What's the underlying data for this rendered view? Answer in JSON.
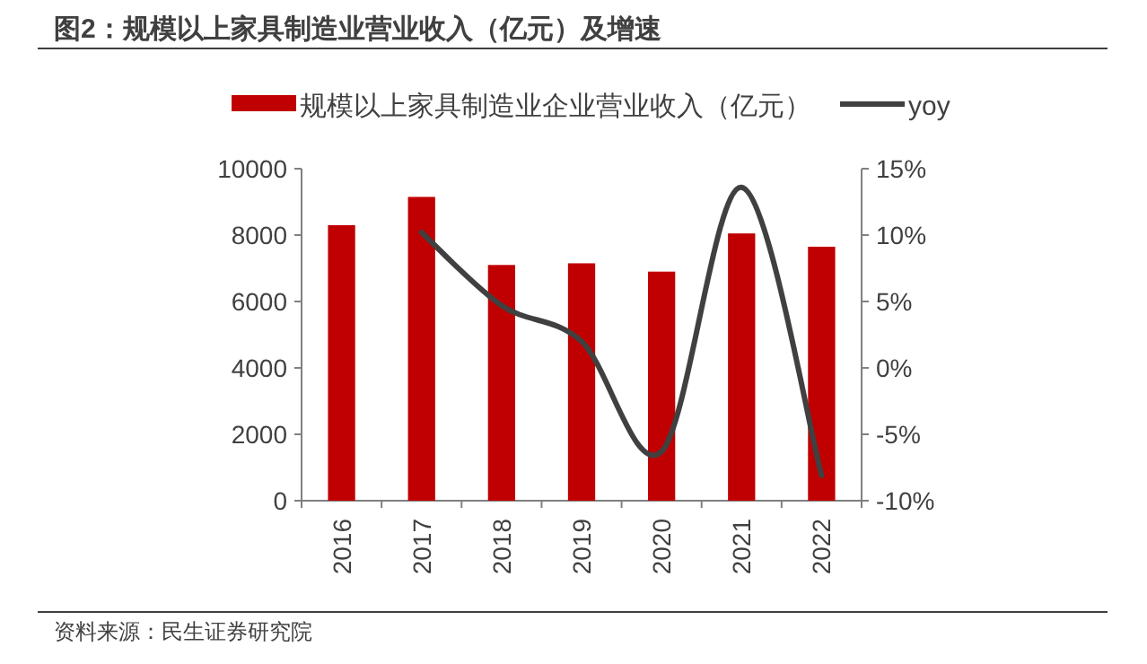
{
  "chart_data": {
    "type": "bar",
    "title": "图2：规模以上家具制造业营业收入（亿元）及增速",
    "categories": [
      "2016",
      "2017",
      "2018",
      "2019",
      "2020",
      "2021",
      "2022"
    ],
    "series": [
      {
        "name": "规模以上家具制造业企业营业收入（亿元）",
        "color": "#c00000",
        "values": [
          8300,
          9150,
          7100,
          7150,
          6900,
          8050,
          7650
        ]
      },
      {
        "name": "yoy",
        "type": "line",
        "axis": "y2",
        "color": "#404040",
        "values": [
          null,
          10.2,
          4.7,
          2.0,
          -6.3,
          13.6,
          -8.1
        ]
      }
    ],
    "ylim": [
      0,
      10000
    ],
    "yticks": [
      0,
      2000,
      4000,
      6000,
      8000,
      10000
    ],
    "y2lim": [
      -10,
      15
    ],
    "y2ticks": [
      {
        "value": -10,
        "label": "-10%"
      },
      {
        "value": -5,
        "label": "-5%"
      },
      {
        "value": 0,
        "label": "0%"
      },
      {
        "value": 5,
        "label": "5%"
      },
      {
        "value": 10,
        "label": "10%"
      },
      {
        "value": 15,
        "label": "15%"
      }
    ],
    "legend": "top",
    "grid": false,
    "annotations": [
      "资料来源：民生证券研究院"
    ]
  }
}
